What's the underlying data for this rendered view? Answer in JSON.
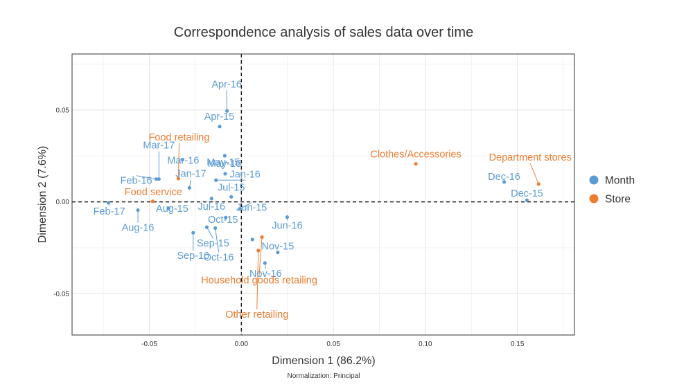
{
  "chart_data": {
    "type": "scatter",
    "title": "Correspondence analysis of sales data over time",
    "xlabel": "Dimension 1 (86.2%)",
    "ylabel": "Dimension 2 (7.6%)",
    "caption": "Normalization: Principal",
    "xlim": [
      -0.092,
      0.181
    ],
    "ylim": [
      -0.0725,
      0.0805
    ],
    "xticks": [
      -0.05,
      0.0,
      0.05,
      0.1,
      0.15
    ],
    "xtick_labels": [
      "-0.05",
      "0.00",
      "0.05",
      "0.10",
      "0.15"
    ],
    "yticks": [
      -0.05,
      0.0,
      0.05
    ],
    "ytick_labels": [
      "-0.05",
      "0.00",
      "0.05"
    ],
    "grid": true,
    "reference_lines": {
      "x": 0,
      "y": 0,
      "style": "dashed"
    },
    "legend": {
      "position": "right",
      "entries": [
        {
          "name": "Month",
          "color": "#5b9bd5"
        },
        {
          "name": "Store",
          "color": "#ed7d31"
        }
      ]
    },
    "series": [
      {
        "name": "Month",
        "color": "#5b9bd5",
        "points": [
          {
            "label": "Apr-16",
            "x": -0.0078,
            "y": 0.0495
          },
          {
            "label": "Apr-15",
            "x": -0.0118,
            "y": 0.041
          },
          {
            "label": "May-15",
            "x": -0.009,
            "y": 0.0251
          },
          {
            "label": "Mar-17",
            "x": -0.0448,
            "y": 0.0124
          },
          {
            "label": "Mar-16",
            "x": -0.032,
            "y": 0.023
          },
          {
            "label": "May-16",
            "x": -0.0088,
            "y": 0.0153
          },
          {
            "label": "Jan-17",
            "x": -0.0282,
            "y": 0.0076
          },
          {
            "label": "Jan-16",
            "x": -0.0138,
            "y": 0.0118
          },
          {
            "label": "Feb-16",
            "x": -0.0462,
            "y": 0.0124
          },
          {
            "label": "Jul-15",
            "x": -0.0055,
            "y": 0.0027
          },
          {
            "label": "Feb-17",
            "x": -0.0722,
            "y": -0.0005
          },
          {
            "label": "Aug-15",
            "x": -0.0395,
            "y": -0.0035
          },
          {
            "label": "Jul-16",
            "x": -0.0162,
            "y": 0.0018
          },
          {
            "label": "Aug-16",
            "x": -0.0562,
            "y": -0.0045
          },
          {
            "label": "Jun-15",
            "x": -0.0008,
            "y": -0.0038
          },
          {
            "label": "Oct-15",
            "x": -0.0085,
            "y": -0.0085
          },
          {
            "label": "Jun-16",
            "x": 0.0249,
            "y": -0.0083
          },
          {
            "label": "Sep-15",
            "x": -0.0188,
            "y": -0.0138
          },
          {
            "label": "Sep-16",
            "x": -0.0262,
            "y": -0.0168
          },
          {
            "label": "Oct-16",
            "x": -0.0142,
            "y": -0.0143
          },
          {
            "label": "Nov-15",
            "x": 0.0198,
            "y": -0.0275
          },
          {
            "label": "Nov-16",
            "x": 0.0128,
            "y": -0.0333
          },
          {
            "label": "Dec-16",
            "x": 0.1428,
            "y": 0.0108
          },
          {
            "label": "Dec-15",
            "x": 0.1552,
            "y": 0.0009
          },
          {
            "label": "",
            "x": 0.006,
            "y": -0.0205
          }
        ]
      },
      {
        "name": "Store",
        "color": "#ed7d31",
        "points": [
          {
            "label": "Food retailing",
            "x": -0.0342,
            "y": 0.0127
          },
          {
            "label": "Food service",
            "x": -0.0482,
            "y": 0.0003
          },
          {
            "label": "Clothes/Accessories",
            "x": 0.0948,
            "y": 0.0207
          },
          {
            "label": "Department stores",
            "x": 0.1615,
            "y": 0.0097
          },
          {
            "label": "Household goods retailing",
            "x": 0.0112,
            "y": -0.0192
          },
          {
            "label": "Other retailing",
            "x": 0.0092,
            "y": -0.0265
          }
        ]
      }
    ]
  }
}
